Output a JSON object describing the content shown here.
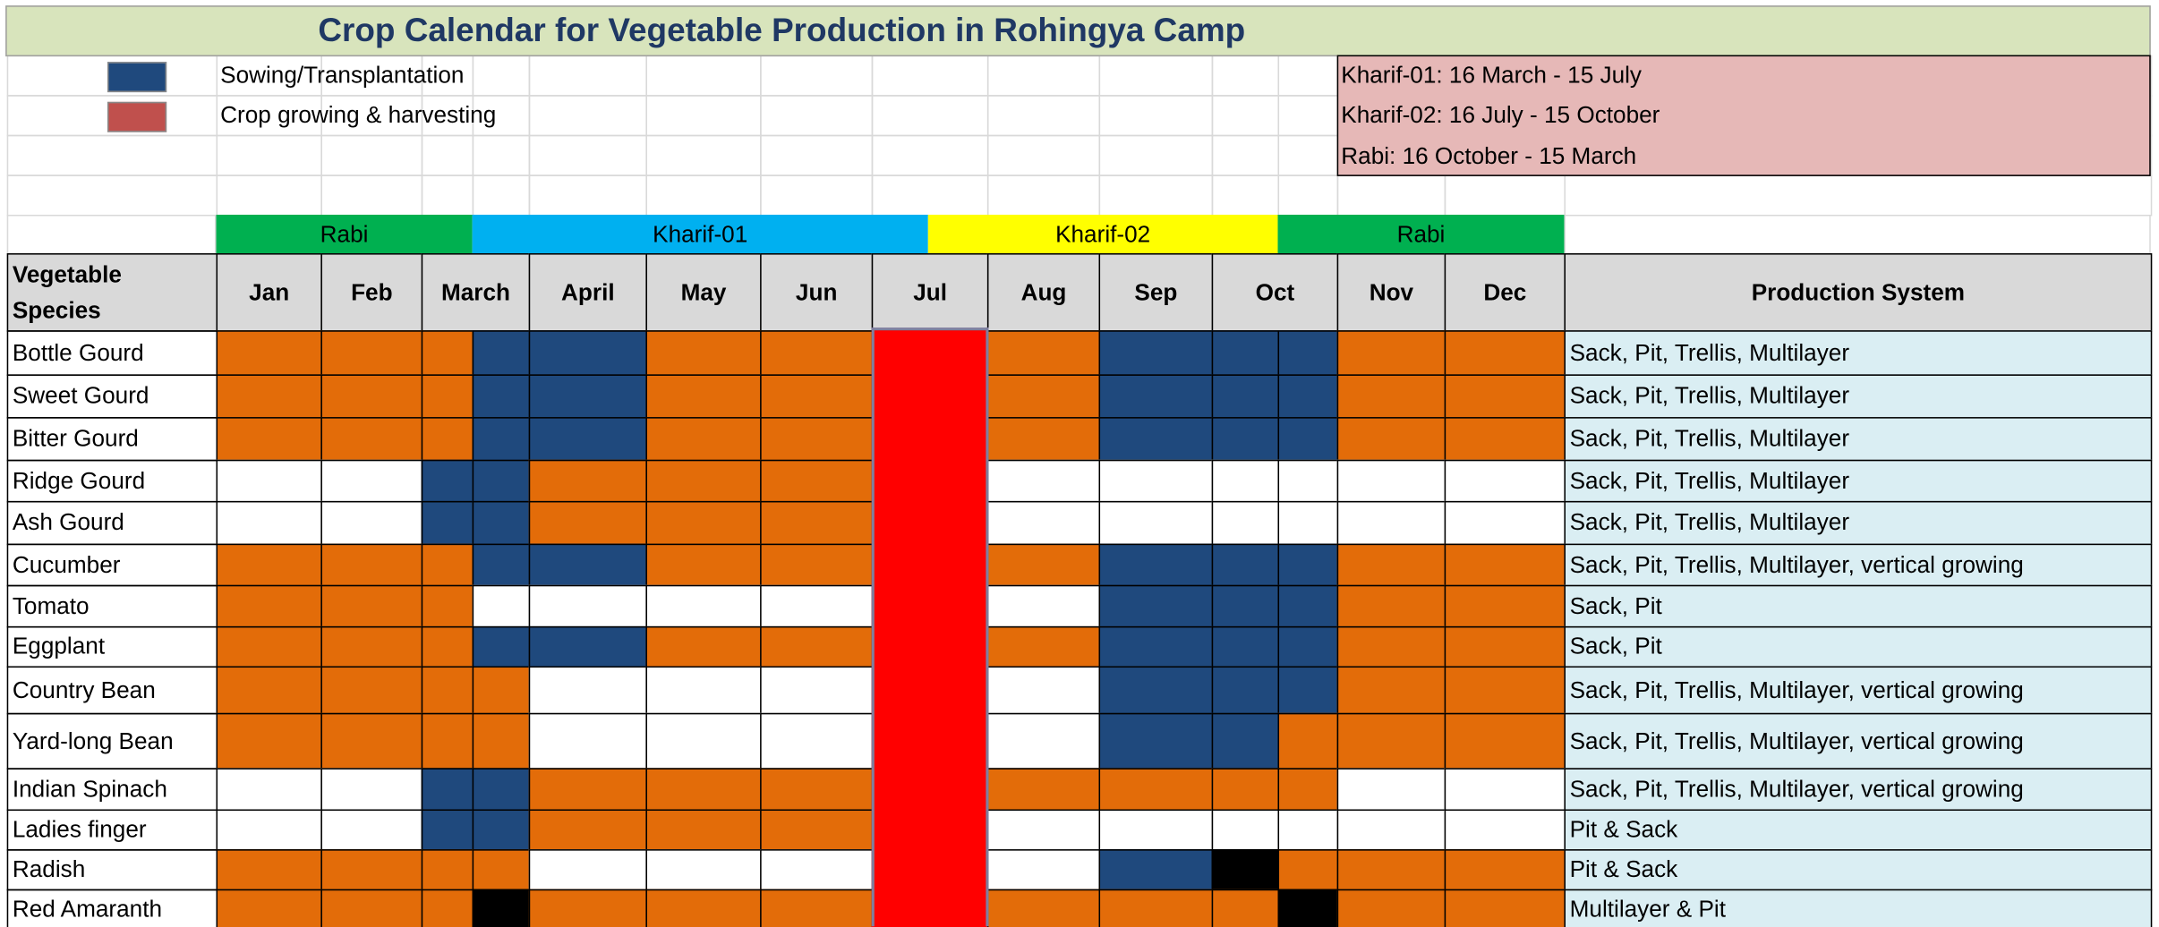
{
  "title": "Crop Calendar for Vegetable Production in Rohingya Camp",
  "legend": [
    {
      "label": "Sowing/Transplantation",
      "color": "#1f497d"
    },
    {
      "label": "Crop growing & harvesting",
      "color": "#c0504d"
    }
  ],
  "seasons_info": [
    "Kharif-01: 16 March - 15 July",
    "Kharif-02: 16 July - 15 October",
    "Rabi: 16 October - 15 March"
  ],
  "season_band": [
    {
      "label": "Rabi",
      "color": "#00b050"
    },
    {
      "label": "Kharif-01",
      "color": "#00b0f0"
    },
    {
      "label": "Kharif-02",
      "color": "#ffff00"
    },
    {
      "label": "Rabi",
      "color": "#00b050"
    }
  ],
  "table": {
    "header": [
      "Vegetable Species",
      "Jan",
      "Feb",
      "March",
      "April",
      "May",
      "Jun",
      "Jul",
      "Aug",
      "Sep",
      "Oct",
      "Nov",
      "Dec",
      "Production System"
    ],
    "rows": [
      {
        "species": "Bottle Gourd",
        "cells": [
          "#e36c09",
          "#e36c09",
          "#e36c09",
          "#1f497d",
          "#1f497d",
          "#e36c09",
          "#e36c09",
          "#ff0000",
          "#e36c09",
          "#1f497d",
          "#1f497d",
          "#1f497d",
          "#e36c09",
          "#e36c09"
        ],
        "system": "Sack, Pit, Trellis, Multilayer"
      },
      {
        "species": "Sweet Gourd",
        "cells": [
          "#e36c09",
          "#e36c09",
          "#e36c09",
          "#1f497d",
          "#1f497d",
          "#e36c09",
          "#e36c09",
          "#ff0000",
          "#e36c09",
          "#1f497d",
          "#1f497d",
          "#1f497d",
          "#e36c09",
          "#e36c09"
        ],
        "system": "Sack, Pit, Trellis, Multilayer"
      },
      {
        "species": "Bitter Gourd",
        "cells": [
          "#e36c09",
          "#e36c09",
          "#e36c09",
          "#1f497d",
          "#1f497d",
          "#e36c09",
          "#e36c09",
          "#ff0000",
          "#e36c09",
          "#1f497d",
          "#1f497d",
          "#1f497d",
          "#e36c09",
          "#e36c09"
        ],
        "system": "Sack, Pit, Trellis, Multilayer"
      },
      {
        "species": "Ridge Gourd",
        "cells": [
          "#ffffff",
          "#ffffff",
          "#1f497d",
          "#1f497d",
          "#e36c09",
          "#e36c09",
          "#e36c09",
          "#ff0000",
          "#ffffff",
          "#ffffff",
          "#ffffff",
          "#ffffff",
          "#ffffff",
          "#ffffff"
        ],
        "system": "Sack, Pit, Trellis, Multilayer"
      },
      {
        "species": "Ash Gourd",
        "cells": [
          "#ffffff",
          "#ffffff",
          "#1f497d",
          "#1f497d",
          "#e36c09",
          "#e36c09",
          "#e36c09",
          "#ff0000",
          "#ffffff",
          "#ffffff",
          "#ffffff",
          "#ffffff",
          "#ffffff",
          "#ffffff"
        ],
        "system": "Sack, Pit, Trellis, Multilayer"
      },
      {
        "species": "Cucumber",
        "cells": [
          "#e36c09",
          "#e36c09",
          "#e36c09",
          "#1f497d",
          "#1f497d",
          "#e36c09",
          "#e36c09",
          "#ff0000",
          "#e36c09",
          "#1f497d",
          "#1f497d",
          "#1f497d",
          "#e36c09",
          "#e36c09"
        ],
        "system": "Sack, Pit, Trellis, Multilayer, vertical growing"
      },
      {
        "species": "Tomato",
        "cells": [
          "#e36c09",
          "#e36c09",
          "#e36c09",
          "#ffffff",
          "#ffffff",
          "#ffffff",
          "#ffffff",
          "#ff0000",
          "#ffffff",
          "#1f497d",
          "#1f497d",
          "#1f497d",
          "#e36c09",
          "#e36c09"
        ],
        "system": "Sack, Pit"
      },
      {
        "species": "Eggplant",
        "cells": [
          "#e36c09",
          "#e36c09",
          "#e36c09",
          "#1f497d",
          "#1f497d",
          "#e36c09",
          "#e36c09",
          "#ff0000",
          "#e36c09",
          "#1f497d",
          "#1f497d",
          "#1f497d",
          "#e36c09",
          "#e36c09"
        ],
        "system": "Sack, Pit"
      },
      {
        "species": "Country Bean",
        "cells": [
          "#e36c09",
          "#e36c09",
          "#e36c09",
          "#e36c09",
          "#ffffff",
          "#ffffff",
          "#ffffff",
          "#ff0000",
          "#ffffff",
          "#1f497d",
          "#1f497d",
          "#1f497d",
          "#e36c09",
          "#e36c09"
        ],
        "system": "Sack, Pit, Trellis, Multilayer, vertical growing"
      },
      {
        "species": "Yard-long Bean",
        "cells": [
          "#e36c09",
          "#e36c09",
          "#e36c09",
          "#e36c09",
          "#ffffff",
          "#ffffff",
          "#ffffff",
          "#ff0000",
          "#ffffff",
          "#1f497d",
          "#1f497d",
          "#e36c09",
          "#e36c09",
          "#e36c09"
        ],
        "system": "Sack, Pit, Trellis, Multilayer, vertical growing"
      },
      {
        "species": "Indian Spinach",
        "cells": [
          "#ffffff",
          "#ffffff",
          "#1f497d",
          "#1f497d",
          "#e36c09",
          "#e36c09",
          "#e36c09",
          "#ff0000",
          "#e36c09",
          "#e36c09",
          "#e36c09",
          "#e36c09",
          "#ffffff",
          "#ffffff"
        ],
        "system": "Sack, Pit, Trellis, Multilayer, vertical growing"
      },
      {
        "species": "Ladies finger",
        "cells": [
          "#ffffff",
          "#ffffff",
          "#1f497d",
          "#1f497d",
          "#e36c09",
          "#e36c09",
          "#e36c09",
          "#ff0000",
          "#ffffff",
          "#ffffff",
          "#ffffff",
          "#ffffff",
          "#ffffff",
          "#ffffff"
        ],
        "system": "Pit & Sack"
      },
      {
        "species": "Radish",
        "cells": [
          "#e36c09",
          "#e36c09",
          "#e36c09",
          "#e36c09",
          "#ffffff",
          "#ffffff",
          "#ffffff",
          "#ff0000",
          "#ffffff",
          "#1f497d",
          "#000000",
          "#e36c09",
          "#e36c09",
          "#e36c09"
        ],
        "system": "Pit & Sack"
      },
      {
        "species": "Red Amaranth",
        "cells": [
          "#e36c09",
          "#e36c09",
          "#e36c09",
          "#000000",
          "#e36c09",
          "#e36c09",
          "#e36c09",
          "#ff0000",
          "#e36c09",
          "#e36c09",
          "#e36c09",
          "#000000",
          "#e36c09",
          "#e36c09"
        ],
        "system": "Multilayer & Pit"
      }
    ]
  }
}
